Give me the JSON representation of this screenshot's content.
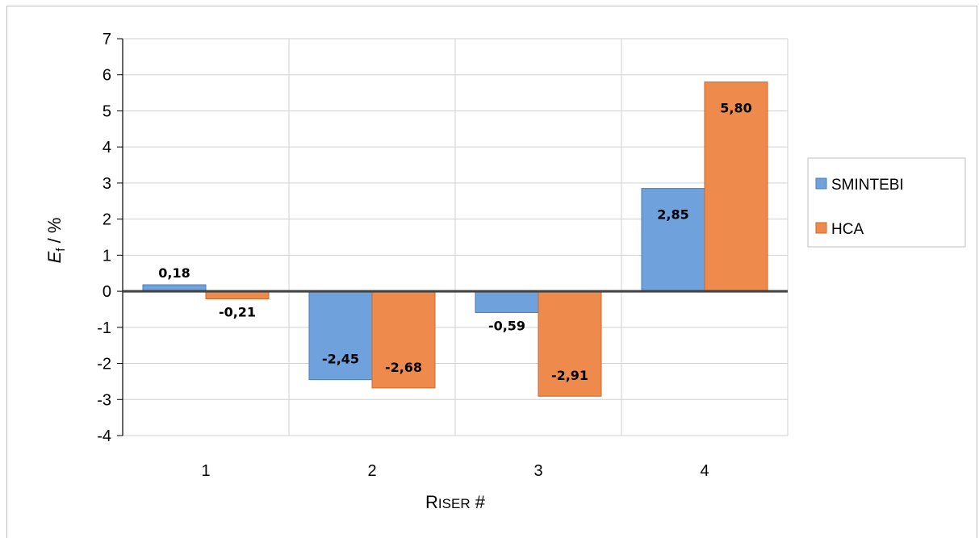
{
  "chart_data": {
    "type": "bar",
    "categories": [
      "1",
      "2",
      "3",
      "4"
    ],
    "series": [
      {
        "name": "SMINTEBI",
        "values": [
          0.18,
          -2.45,
          -0.59,
          2.85
        ],
        "labels": [
          "0,18",
          "-2,45",
          "-0,59",
          "2,85"
        ],
        "color": "#6fa1dc"
      },
      {
        "name": "HCA",
        "values": [
          -0.21,
          -2.68,
          -2.91,
          5.8
        ],
        "labels": [
          "-0,21",
          "-2,68",
          "-2,91",
          "5,80"
        ],
        "color": "#ee8b4c"
      }
    ],
    "ylabel_main": "E",
    "ylabel_sub": "f",
    "ylabel_rest": " / %",
    "xlabel_cap": "R",
    "xlabel_small": "ISER",
    "xlabel_rest": " #",
    "ylim": [
      -4,
      7
    ],
    "yticks": [
      "-4",
      "-3",
      "-2",
      "-1",
      "0",
      "1",
      "2",
      "3",
      "4",
      "5",
      "6",
      "7"
    ],
    "grid": true,
    "legend_position": "right"
  }
}
